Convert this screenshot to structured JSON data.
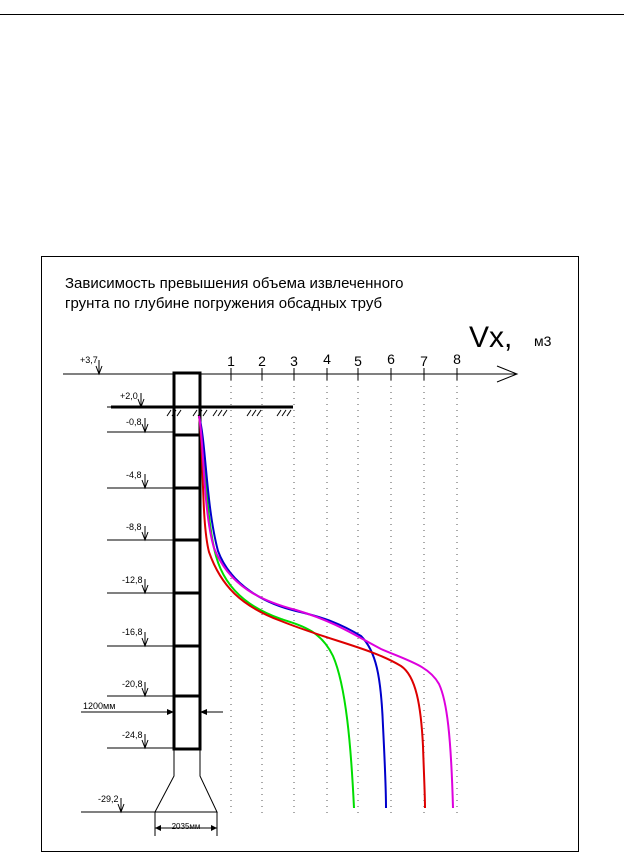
{
  "title_lines": [
    "Зависимость превышения объема извлеченного",
    "грунта по глубине погружения обсадных труб"
  ],
  "axis": {
    "name": "Vx,",
    "unit": "м3",
    "ticks": [
      "1",
      "2",
      "3",
      "4",
      "5",
      "6",
      "7",
      "8"
    ]
  },
  "elevations": [
    "+3,7",
    "+2,0",
    "-0,8",
    "-4,8",
    "-8,8",
    "-12,8",
    "-16,8",
    "-20,8",
    "-24,8",
    "-29,2"
  ],
  "dimensions": {
    "pipe_diameter": "1200мм",
    "base_width": "2035мм"
  },
  "curve_colors": [
    "#00dd00",
    "#0000cc",
    "#dd0000",
    "#dd00dd"
  ]
}
